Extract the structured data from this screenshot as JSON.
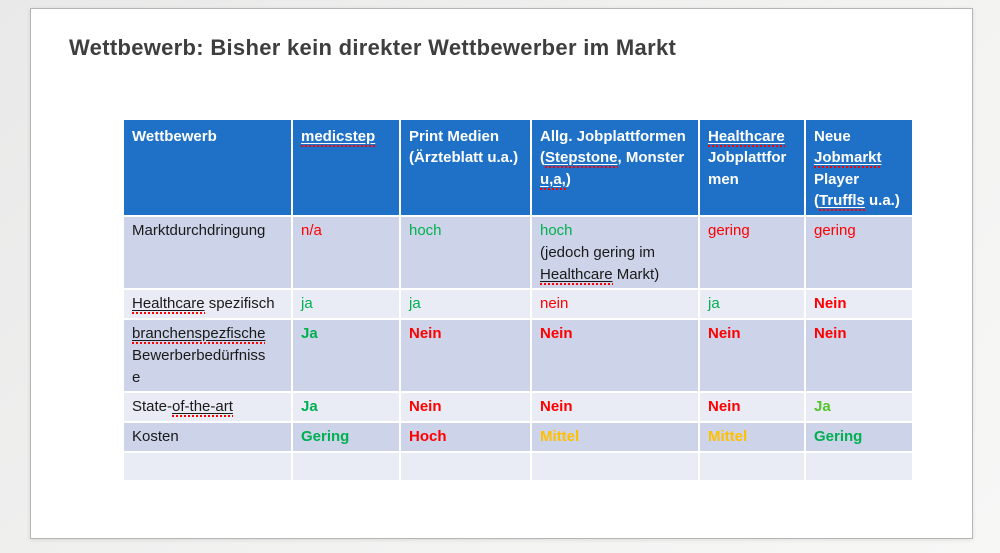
{
  "slide": {
    "title": "Wettbewerb: Bisher kein direkter Wettbewerber im Markt"
  },
  "colors": {
    "header_bg": "#1E71C6",
    "band_dark": "#CDD3E8",
    "band_light": "#E9EBF5",
    "red": "#FF0000",
    "green": "#00B050",
    "light_green": "#54C32C",
    "orange": "#FFC000",
    "title_text": "#3E3E3E",
    "header_text": "#FFFFFF"
  },
  "table": {
    "header": [
      {
        "segments": [
          "Wettbewerb"
        ]
      },
      {
        "segments": [
          {
            "t": "medicstep",
            "sq": true
          }
        ]
      },
      {
        "segments": [
          "Print Medien\n(Ärzteblatt u.a.)"
        ]
      },
      {
        "segments": [
          "Allg. Jobplattformen\n(",
          {
            "t": "Stepstone",
            "sq": true
          },
          ", Monster\n",
          {
            "t": "u,a,",
            "sq": true
          },
          ")"
        ]
      },
      {
        "segments": [
          {
            "t": "Healthcare",
            "sq": true
          },
          "\nJobplattfor\nmen"
        ]
      },
      {
        "segments": [
          "Neue\n",
          {
            "t": "Jobmarkt",
            "sq": true
          },
          "\nPlayer\n(",
          {
            "t": "Truffls",
            "sq": true
          },
          " u.a.)"
        ]
      }
    ],
    "rows": [
      {
        "cells": [
          {
            "segments": [
              "Marktdurchdringung"
            ]
          },
          {
            "segments": [
              "n/a"
            ],
            "color": "red"
          },
          {
            "segments": [
              "hoch"
            ],
            "color": "green"
          },
          {
            "segments": [
              {
                "t": "hoch",
                "color": "green"
              },
              "\n(jedoch gering im\n",
              {
                "t": "Healthcare",
                "sq": true
              },
              " Markt)"
            ]
          },
          {
            "segments": [
              "gering"
            ],
            "color": "red"
          },
          {
            "segments": [
              "gering"
            ],
            "color": "red"
          }
        ]
      },
      {
        "cells": [
          {
            "segments": [
              {
                "t": "Healthcare",
                "sq": true
              },
              " spezifisch"
            ]
          },
          {
            "segments": [
              "ja"
            ],
            "color": "green"
          },
          {
            "segments": [
              "ja"
            ],
            "color": "green"
          },
          {
            "segments": [
              "nein"
            ],
            "color": "red"
          },
          {
            "segments": [
              "ja"
            ],
            "color": "green"
          },
          {
            "segments": [
              "Nein"
            ],
            "color": "red",
            "bold": true
          }
        ]
      },
      {
        "cells": [
          {
            "segments": [
              {
                "t": "branchenspezfische",
                "sq": true
              },
              "\nBewerberbedürfniss\ne"
            ]
          },
          {
            "segments": [
              "Ja"
            ],
            "color": "green",
            "bold": true
          },
          {
            "segments": [
              "Nein"
            ],
            "color": "red",
            "bold": true
          },
          {
            "segments": [
              "Nein"
            ],
            "color": "red",
            "bold": true
          },
          {
            "segments": [
              "Nein"
            ],
            "color": "red",
            "bold": true
          },
          {
            "segments": [
              "Nein"
            ],
            "color": "red",
            "bold": true
          }
        ]
      },
      {
        "cells": [
          {
            "segments": [
              "State-",
              {
                "t": "of-the-art",
                "sq": true
              }
            ]
          },
          {
            "segments": [
              "Ja"
            ],
            "color": "green",
            "bold": true
          },
          {
            "segments": [
              "Nein"
            ],
            "color": "red",
            "bold": true
          },
          {
            "segments": [
              "Nein"
            ],
            "color": "red",
            "bold": true
          },
          {
            "segments": [
              "Nein"
            ],
            "color": "red",
            "bold": true
          },
          {
            "segments": [
              "Ja"
            ],
            "color": "light_green",
            "bold": true
          }
        ]
      },
      {
        "cells": [
          {
            "segments": [
              "Kosten"
            ]
          },
          {
            "segments": [
              "Gering"
            ],
            "color": "green",
            "bold": true
          },
          {
            "segments": [
              "Hoch"
            ],
            "color": "red",
            "bold": true
          },
          {
            "segments": [
              "Mittel"
            ],
            "color": "orange",
            "bold": true
          },
          {
            "segments": [
              "Mittel"
            ],
            "color": "orange",
            "bold": true
          },
          {
            "segments": [
              "Gering"
            ],
            "color": "green",
            "bold": true
          }
        ]
      },
      {
        "cells": [
          {
            "segments": []
          },
          {
            "segments": []
          },
          {
            "segments": []
          },
          {
            "segments": []
          },
          {
            "segments": []
          },
          {
            "segments": []
          }
        ]
      }
    ]
  }
}
